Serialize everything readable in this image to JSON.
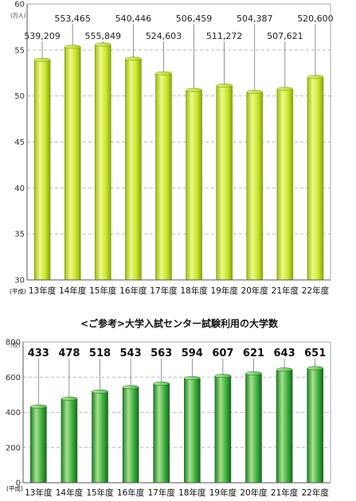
{
  "chart_data": [
    {
      "type": "bar",
      "title": "",
      "unit_label": "(万人)",
      "era_label": "(平成)",
      "categories": [
        "13年度",
        "14年度",
        "15年度",
        "16年度",
        "17年度",
        "18年度",
        "19年度",
        "20年度",
        "21年度",
        "22年度"
      ],
      "values": [
        539209,
        553465,
        555849,
        540446,
        524603,
        506459,
        511272,
        504387,
        507621,
        520600
      ],
      "value_labels": [
        "539,209",
        "553,465",
        "555,849",
        "540,446",
        "524,603",
        "506,459",
        "511,272",
        "504,387",
        "507,621",
        "520,600"
      ],
      "ylim": [
        300000,
        600000
      ],
      "yticks": [
        30,
        35,
        40,
        45,
        50,
        55,
        60
      ],
      "grid": true,
      "bar_color": "#c8e62a"
    },
    {
      "type": "bar",
      "title": "<ご参考>大学入試センター試験利用の大学数",
      "unit_label": "(校)",
      "era_label": "(平成)",
      "categories": [
        "13年度",
        "14年度",
        "15年度",
        "16年度",
        "17年度",
        "18年度",
        "19年度",
        "20年度",
        "21年度",
        "22年度"
      ],
      "values": [
        433,
        478,
        518,
        543,
        563,
        594,
        607,
        621,
        643,
        651
      ],
      "value_labels": [
        "433",
        "478",
        "518",
        "543",
        "563",
        "594",
        "607",
        "621",
        "643",
        "651"
      ],
      "ylim": [
        0,
        800
      ],
      "yticks": [
        0,
        200,
        400,
        600,
        800
      ],
      "grid": true,
      "bar_color": "#3aa83a"
    }
  ]
}
